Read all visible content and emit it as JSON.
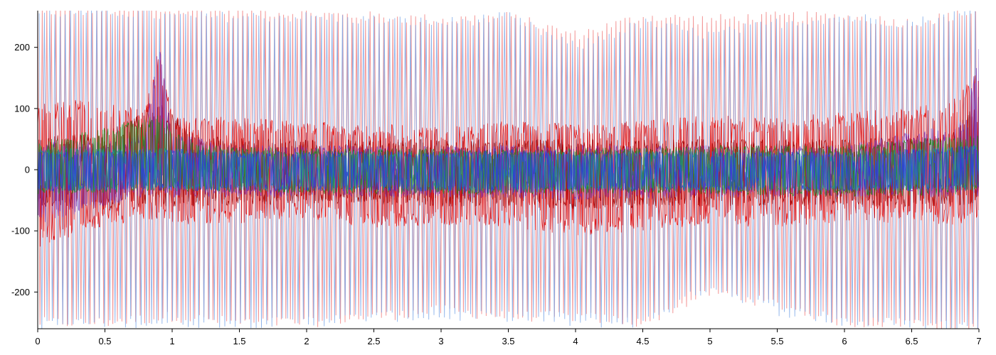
{
  "chart_data": {
    "type": "line",
    "title": "",
    "xlabel": "",
    "ylabel": "",
    "xlim": [
      0,
      7
    ],
    "ylim": [
      -260,
      260
    ],
    "grid": false,
    "legend": "none",
    "x_ticks": [
      0,
      0.5,
      1,
      1.5,
      2,
      2.5,
      3,
      3.5,
      4,
      4.5,
      5,
      5.5,
      6,
      6.5,
      7
    ],
    "x_tick_labels": [
      "0",
      "0.5",
      "1",
      "1.5",
      "2",
      "2.5",
      "3",
      "3.5",
      "4",
      "4.5",
      "5",
      "5.5",
      "6",
      "6.5",
      "7"
    ],
    "y_ticks": [
      200,
      100,
      0,
      -100,
      -200
    ],
    "y_tick_labels": [
      "200",
      "100",
      "0",
      "-100",
      "-200"
    ],
    "series_colors": {
      "light_blue": "#7aa7e8",
      "light_red": "#f28c8c",
      "red": "#e00000",
      "dark_red": "#a00000",
      "purple": "#7a2fb0",
      "green": "#1f8a1f",
      "teal": "#1a9a9a",
      "blue": "#2a3be0"
    },
    "series": [
      {
        "color_key": "light_red",
        "kind": "oscillation",
        "x": [
          0,
          0.5,
          1,
          1.5,
          2,
          2.5,
          3,
          3.5,
          4,
          4.5,
          5,
          5.5,
          6,
          6.5,
          7
        ],
        "upper": [
          260,
          260,
          260,
          260,
          255,
          250,
          245,
          250,
          220,
          250,
          245,
          250,
          250,
          240,
          260
        ],
        "lower": [
          -250,
          -250,
          -240,
          -250,
          -250,
          -240,
          -230,
          -240,
          -240,
          -250,
          -200,
          -220,
          -250,
          -250,
          -260
        ]
      },
      {
        "color_key": "light_blue",
        "kind": "oscillation",
        "x": [
          0,
          0.5,
          1,
          1.5,
          2,
          2.5,
          3,
          3.5,
          4,
          4.5,
          5,
          5.5,
          6,
          6.5,
          7
        ],
        "upper": [
          255,
          260,
          250,
          250,
          250,
          245,
          240,
          250,
          200,
          240,
          220,
          240,
          250,
          240,
          260
        ],
        "lower": [
          -255,
          -250,
          -250,
          -250,
          -250,
          -240,
          -240,
          -240,
          -250,
          -250,
          -190,
          -230,
          -250,
          -250,
          -260
        ]
      },
      {
        "color_key": "red",
        "kind": "band",
        "x": [
          0,
          0.3,
          0.5,
          0.8,
          0.9,
          1.0,
          1.5,
          2,
          2.5,
          3,
          3.5,
          4,
          4.5,
          5,
          5.5,
          6,
          6.5,
          6.85,
          7
        ],
        "upper": [
          110,
          115,
          110,
          100,
          200,
          90,
          85,
          80,
          75,
          70,
          80,
          75,
          80,
          90,
          85,
          95,
          100,
          120,
          180
        ],
        "lower": [
          -130,
          -110,
          -90,
          -85,
          -80,
          -90,
          -90,
          -80,
          -95,
          -90,
          -95,
          -110,
          -100,
          -90,
          -95,
          -85,
          -90,
          -90,
          -80
        ]
      },
      {
        "color_key": "dark_red",
        "kind": "band",
        "x": [
          0,
          0.5,
          0.9,
          1.2,
          2,
          3,
          4,
          5,
          6,
          6.8,
          7
        ],
        "upper": [
          55,
          60,
          110,
          55,
          50,
          50,
          50,
          50,
          50,
          60,
          120
        ],
        "lower": [
          -60,
          -65,
          -60,
          -60,
          -55,
          -60,
          -65,
          -60,
          -60,
          -60,
          -55
        ]
      },
      {
        "color_key": "purple",
        "kind": "band",
        "x": [
          0,
          0.5,
          0.8,
          0.9,
          1.0,
          1.5,
          2,
          3,
          4,
          5,
          6,
          6.9,
          7
        ],
        "upper": [
          50,
          45,
          60,
          225,
          60,
          40,
          40,
          40,
          40,
          40,
          40,
          80,
          200
        ],
        "lower": [
          -90,
          -60,
          -45,
          -40,
          -45,
          -45,
          -45,
          -45,
          -50,
          -45,
          -45,
          -45,
          -45
        ]
      },
      {
        "color_key": "green",
        "kind": "band",
        "x": [
          0,
          0.5,
          0.9,
          1.2,
          2,
          3,
          4,
          5,
          6,
          7
        ],
        "upper": [
          45,
          70,
          90,
          40,
          35,
          35,
          35,
          40,
          40,
          60
        ],
        "lower": [
          -40,
          -40,
          -35,
          -35,
          -40,
          -40,
          -40,
          -40,
          -45,
          -40
        ]
      },
      {
        "color_key": "teal",
        "kind": "band",
        "x": [
          0,
          1,
          2,
          3,
          4,
          5,
          6,
          7
        ],
        "upper": [
          35,
          35,
          30,
          30,
          30,
          30,
          30,
          40
        ],
        "lower": [
          -35,
          -35,
          -35,
          -35,
          -35,
          -35,
          -35,
          -35
        ]
      },
      {
        "color_key": "blue",
        "kind": "band",
        "x": [
          0,
          0.5,
          1,
          1.5,
          2,
          2.5,
          3,
          3.5,
          4,
          4.5,
          5,
          5.5,
          6,
          6.5,
          7
        ],
        "upper": [
          30,
          30,
          35,
          30,
          30,
          30,
          30,
          35,
          30,
          30,
          30,
          30,
          30,
          35,
          40
        ],
        "lower": [
          -35,
          -35,
          -35,
          -35,
          -35,
          -35,
          -35,
          -40,
          -35,
          -35,
          -35,
          -35,
          -35,
          -35,
          -30
        ]
      }
    ]
  }
}
